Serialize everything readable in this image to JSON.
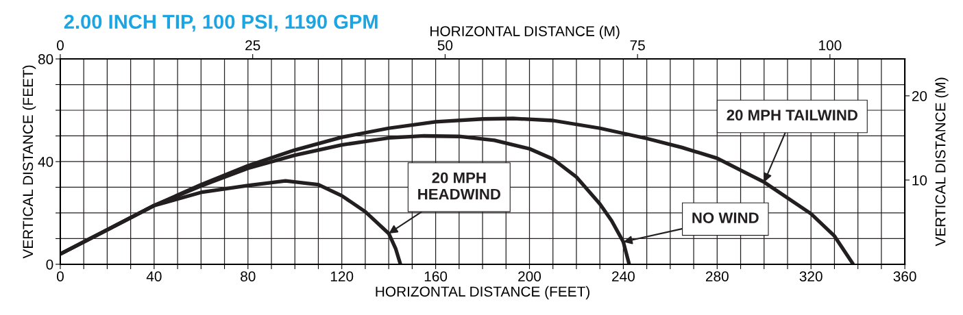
{
  "chart_data": {
    "type": "line",
    "title": "2.00 INCH TIP, 100 PSI, 1190 GPM",
    "xlabel": "HORIZONTAL DISTANCE (FEET)",
    "ylabel": "VERTICAL DISTANCE (FEET)",
    "x2label": "HORIZONTAL DISTANCE (M)",
    "y2label": "VERTICAL DISTANCE (M)",
    "xlim": [
      0,
      360
    ],
    "ylim": [
      0,
      80
    ],
    "x2lim": [
      0,
      109.73
    ],
    "y2lim": [
      0,
      24.38
    ],
    "xticks": [
      0,
      {
        "value": 10,
        "label": null
      },
      {
        "value": 20,
        "label": null
      },
      {
        "value": 30,
        "label": null
      },
      40,
      {
        "value": 50,
        "label": null
      },
      {
        "value": 60,
        "label": null
      },
      {
        "value": 70,
        "label": null
      },
      80,
      {
        "value": 90,
        "label": null
      },
      {
        "value": 100,
        "label": null
      },
      {
        "value": 110,
        "label": null
      },
      120,
      {
        "value": 130,
        "label": null
      },
      {
        "value": 140,
        "label": null
      },
      {
        "value": 150,
        "label": null
      },
      160,
      {
        "value": 170,
        "label": null
      },
      {
        "value": 180,
        "label": null
      },
      {
        "value": 190,
        "label": null
      },
      200,
      {
        "value": 210,
        "label": null
      },
      {
        "value": 220,
        "label": null
      },
      {
        "value": 230,
        "label": null
      },
      240,
      {
        "value": 250,
        "label": null
      },
      {
        "value": 260,
        "label": null
      },
      {
        "value": 270,
        "label": null
      },
      280,
      {
        "value": 290,
        "label": null
      },
      {
        "value": 300,
        "label": null
      },
      {
        "value": 310,
        "label": null
      },
      320,
      {
        "value": 330,
        "label": null
      },
      {
        "value": 340,
        "label": null
      },
      {
        "value": 350,
        "label": null
      },
      360
    ],
    "yticks": [
      0,
      {
        "value": 10,
        "label": null
      },
      {
        "value": 20,
        "label": null
      },
      {
        "value": 30,
        "label": null
      },
      40,
      {
        "value": 50,
        "label": null
      },
      {
        "value": 60,
        "label": null
      },
      {
        "value": 70,
        "label": null
      },
      80
    ],
    "x2ticks": [
      0,
      25,
      50,
      75,
      100
    ],
    "y2ticks": [
      10,
      20
    ],
    "grid": true,
    "marker": "none",
    "line_style": "solid",
    "series": [
      {
        "color": "#231f20",
        "x": [
          0,
          20,
          40,
          60,
          80,
          96,
          110,
          120,
          130,
          140,
          143,
          145
        ],
        "values": [
          4,
          13.4,
          22.9,
          28,
          30.7,
          32.5,
          31,
          26.7,
          20.5,
          12,
          6,
          0
        ]
      },
      {
        "color": "#231f20",
        "x": [
          0,
          20,
          40,
          60,
          80,
          100,
          120,
          140,
          155,
          170,
          185,
          200,
          210,
          220,
          230,
          235,
          240,
          242.5
        ],
        "values": [
          4,
          13.4,
          22.9,
          30.5,
          37.4,
          42.5,
          46.5,
          49.2,
          50,
          49.8,
          48.3,
          45,
          41,
          34,
          23.5,
          17,
          8.7,
          0
        ]
      },
      {
        "color": "#231f20",
        "x": [
          0,
          20,
          40,
          60,
          80,
          100,
          120,
          140,
          160,
          180,
          193,
          210,
          230,
          250,
          265,
          280,
          300,
          320,
          330,
          338
        ],
        "values": [
          4,
          13.4,
          22.9,
          31,
          38.4,
          44.5,
          49.5,
          53,
          55.5,
          56.6,
          56.8,
          56,
          53,
          49,
          45.5,
          41.3,
          32,
          19.7,
          11,
          0
        ]
      }
    ],
    "annotations": [
      {
        "text": "20 MPH\nHEADWIND",
        "x": 140,
        "y": 12
      },
      {
        "text": "NO WIND",
        "x": 240,
        "y": 8.7
      },
      {
        "text": "20 MPH TAILWIND",
        "x": 300,
        "y": 32
      }
    ]
  }
}
